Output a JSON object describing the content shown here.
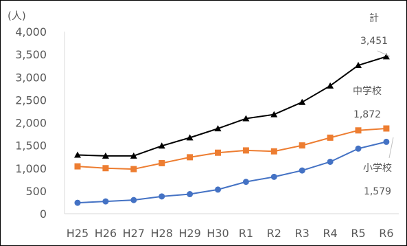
{
  "chart_data": {
    "type": "line",
    "unit_label": "(人)",
    "categories": [
      "H25",
      "H26",
      "H27",
      "H28",
      "H29",
      "H30",
      "R1",
      "R2",
      "R3",
      "R4",
      "R5",
      "R6"
    ],
    "ylim": [
      0,
      4000
    ],
    "yticks": [
      0,
      500,
      1000,
      1500,
      2000,
      2500,
      3000,
      3500,
      4000
    ],
    "ytick_labels": [
      "0",
      "500",
      "1,000",
      "1,500",
      "2,000",
      "2,500",
      "3,000",
      "3,500",
      "4,000"
    ],
    "grid": false,
    "series": [
      {
        "name": "計",
        "color": "#000000",
        "marker": "triangle",
        "values": [
          1290,
          1270,
          1270,
          1490,
          1670,
          1870,
          2090,
          2180,
          2450,
          2810,
          3260,
          3451
        ],
        "value_label": "3,451"
      },
      {
        "name": "中学校",
        "color": "#ED7D31",
        "marker": "square",
        "values": [
          1040,
          1000,
          980,
          1110,
          1240,
          1340,
          1390,
          1370,
          1500,
          1670,
          1830,
          1872
        ],
        "value_label": "1,872"
      },
      {
        "name": "小学校",
        "color": "#4472C4",
        "marker": "circle",
        "values": [
          240,
          270,
          300,
          380,
          430,
          530,
          700,
          810,
          950,
          1140,
          1430,
          1579
        ],
        "value_label": "1,579"
      }
    ]
  }
}
